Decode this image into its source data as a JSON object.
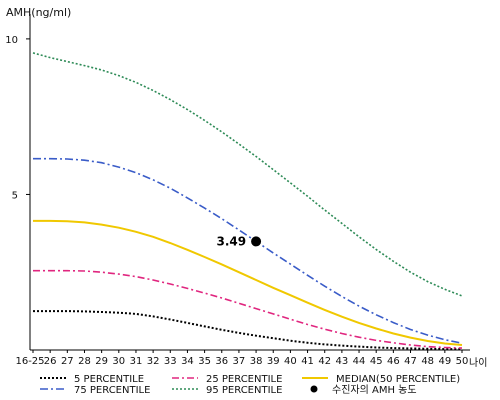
{
  "chart_data": {
    "type": "line",
    "y_title": "AMH(ng/ml)",
    "x_unit_label": "나이",
    "x_categories": [
      "16-25",
      "26",
      "27",
      "28",
      "29",
      "30",
      "31",
      "32",
      "33",
      "34",
      "35",
      "36",
      "37",
      "38",
      "39",
      "40",
      "41",
      "42",
      "43",
      "44",
      "45",
      "46",
      "47",
      "48",
      "49",
      "50"
    ],
    "y_ticks": [
      5,
      10
    ],
    "ylim": [
      0,
      10.8
    ],
    "grid": false,
    "series": [
      {
        "name": "5 PERCENTILE",
        "color": "#000000",
        "dash": "2,2",
        "width": 2,
        "values": [
          1.25,
          1.25,
          1.25,
          1.24,
          1.22,
          1.2,
          1.16,
          1.08,
          0.98,
          0.87,
          0.76,
          0.65,
          0.55,
          0.46,
          0.38,
          0.3,
          0.23,
          0.18,
          0.14,
          0.11,
          0.08,
          0.06,
          0.05,
          0.04,
          0.03,
          0.03
        ]
      },
      {
        "name": "25 PERCENTILE",
        "color": "#e0267f",
        "dash": "7,3,2,3",
        "width": 1.6,
        "values": [
          2.55,
          2.55,
          2.55,
          2.54,
          2.5,
          2.44,
          2.36,
          2.25,
          2.12,
          1.98,
          1.83,
          1.67,
          1.5,
          1.33,
          1.16,
          0.99,
          0.82,
          0.67,
          0.53,
          0.41,
          0.31,
          0.23,
          0.16,
          0.11,
          0.08,
          0.06
        ]
      },
      {
        "name": "MEDIAN(50 PERCENTILE)",
        "color": "#f0c800",
        "dash": "",
        "width": 2,
        "values": [
          4.15,
          4.15,
          4.14,
          4.1,
          4.03,
          3.93,
          3.8,
          3.64,
          3.44,
          3.22,
          2.99,
          2.75,
          2.5,
          2.25,
          2.0,
          1.76,
          1.52,
          1.29,
          1.07,
          0.87,
          0.69,
          0.53,
          0.4,
          0.29,
          0.21,
          0.16
        ]
      },
      {
        "name": "75 PERCENTILE",
        "color": "#3a5cc8",
        "dash": "8,3,2,3",
        "width": 1.6,
        "values": [
          6.15,
          6.15,
          6.14,
          6.1,
          6.02,
          5.88,
          5.7,
          5.47,
          5.2,
          4.89,
          4.56,
          4.22,
          3.86,
          3.49,
          3.12,
          2.76,
          2.4,
          2.05,
          1.72,
          1.41,
          1.13,
          0.88,
          0.66,
          0.48,
          0.33,
          0.22
        ]
      },
      {
        "name": "95 PERCENTILE",
        "color": "#2e8b57",
        "dash": "2,2",
        "width": 1.6,
        "values": [
          9.55,
          9.4,
          9.27,
          9.14,
          9.0,
          8.82,
          8.6,
          8.34,
          8.05,
          7.73,
          7.38,
          7.01,
          6.62,
          6.22,
          5.8,
          5.37,
          4.94,
          4.5,
          4.07,
          3.64,
          3.23,
          2.85,
          2.5,
          2.2,
          1.95,
          1.74
        ]
      }
    ],
    "marker": {
      "legend_label": "수진자의 AMH 농도",
      "x": "38",
      "y": 3.49,
      "label": "3.49"
    }
  }
}
